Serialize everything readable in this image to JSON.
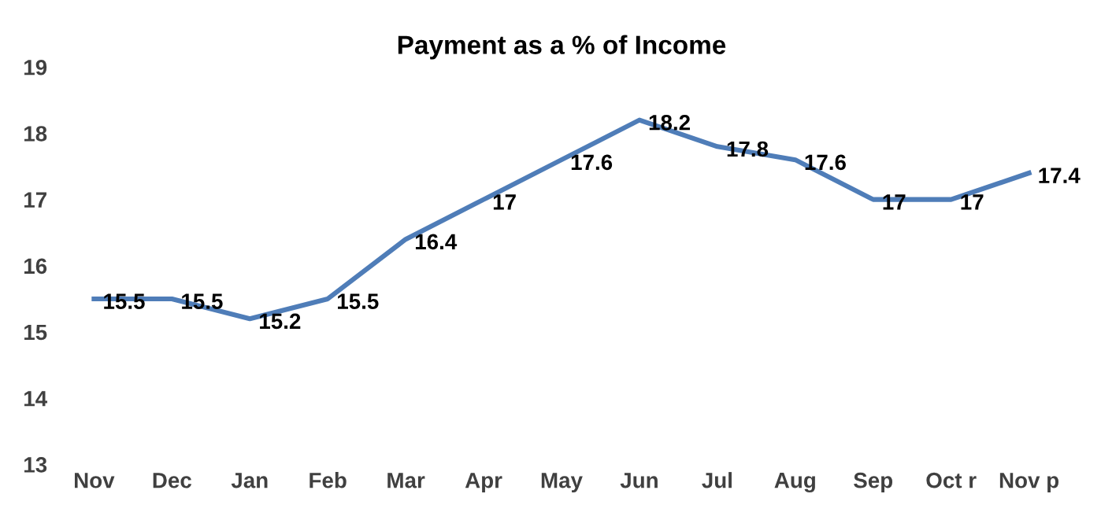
{
  "chart_data": {
    "type": "line",
    "title": "Payment as a % of Income",
    "categories": [
      "Nov",
      "Dec",
      "Jan",
      "Feb",
      "Mar",
      "Apr",
      "May",
      "Jun",
      "Jul",
      "Aug",
      "Sep",
      "Oct r",
      "Nov p"
    ],
    "series": [
      {
        "color": "#4f7db8",
        "values": [
          15.5,
          15.5,
          15.2,
          15.5,
          16.4,
          17,
          17.6,
          18.2,
          17.8,
          17.6,
          17,
          17,
          17.4
        ]
      }
    ],
    "ylim": [
      13,
      19
    ],
    "yticks": [
      13,
      14,
      15,
      16,
      17,
      18,
      19
    ],
    "data_labels": true,
    "grid": false,
    "legend": false,
    "marker": "none",
    "line_style": "solid"
  }
}
